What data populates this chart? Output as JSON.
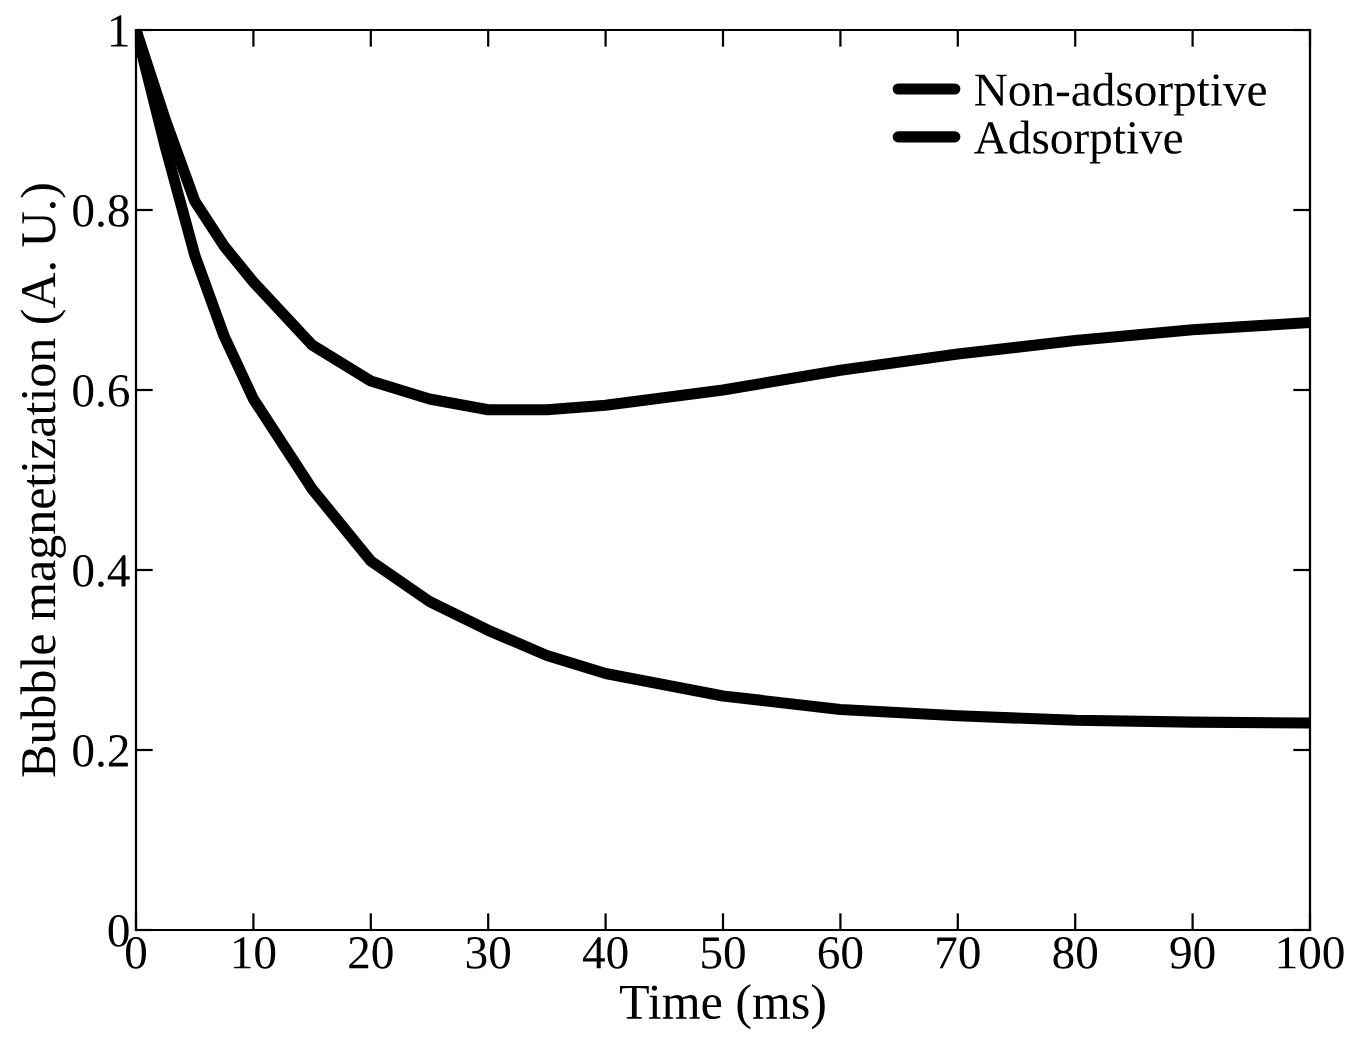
{
  "chart_data": {
    "type": "line",
    "xlabel": "Time (ms)",
    "ylabel": "Bubble magnetization (A. U.)",
    "x": [
      0,
      2.5,
      5,
      7.5,
      10,
      15,
      20,
      25,
      30,
      35,
      40,
      50,
      60,
      70,
      80,
      90,
      100
    ],
    "series": [
      {
        "name": "Non-adsorptive",
        "color": "#000000",
        "values": [
          1,
          0.9,
          0.81,
          0.76,
          0.72,
          0.65,
          0.61,
          0.59,
          0.578,
          0.578,
          0.583,
          0.6,
          0.622,
          0.64,
          0.655,
          0.667,
          0.675
        ]
      },
      {
        "name": "Adsorptive",
        "color": "#000000",
        "values": [
          1,
          0.87,
          0.75,
          0.66,
          0.59,
          0.49,
          0.41,
          0.365,
          0.333,
          0.305,
          0.285,
          0.26,
          0.245,
          0.238,
          0.233,
          0.231,
          0.23
        ]
      }
    ],
    "xlim": [
      0,
      100
    ],
    "xticks": [
      0,
      10,
      20,
      30,
      40,
      50,
      60,
      70,
      80,
      90,
      100
    ],
    "ylim": [
      0,
      1
    ],
    "yticks": [
      0,
      0.2,
      0.4,
      0.6,
      0.8,
      1
    ],
    "legend": "top right",
    "grid": false,
    "marker": "none",
    "line_style": "solid"
  }
}
